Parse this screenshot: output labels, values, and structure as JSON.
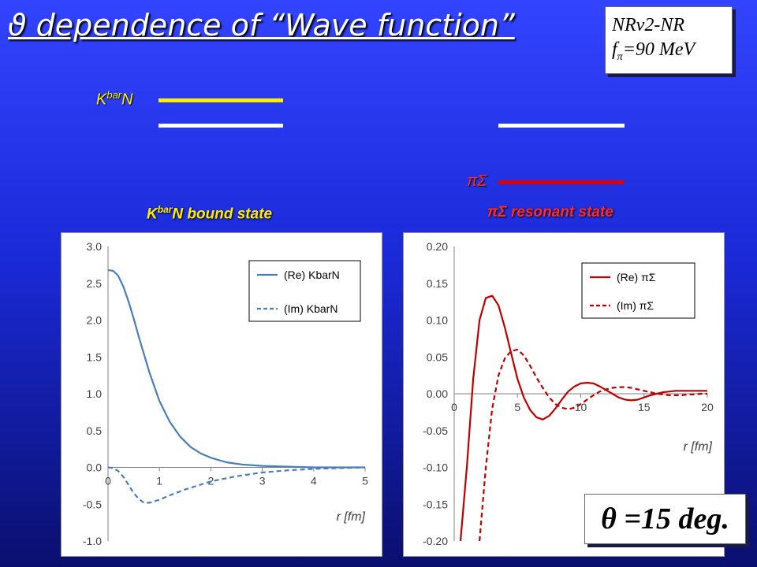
{
  "title": "ϑ dependence of “Wave function”",
  "info": {
    "line1": "NRv2-NR",
    "line2_f": "f",
    "line2_sub": "π",
    "line2_rest": "=90 MeV"
  },
  "levels": {
    "kbarn_label": "K",
    "kbarn_sup": "bar",
    "kbarn_tail": "N",
    "pisigma_label": "πΣ",
    "colors": {
      "yellow": "#ffee00",
      "white": "#ffffff",
      "red": "#e00000"
    }
  },
  "left_subtitle": {
    "k": "K",
    "sup": "bar",
    "rest": "N bound state"
  },
  "right_subtitle": "πΣ resonant state",
  "theta": "θ =15 deg.",
  "chart_data": [
    {
      "type": "line",
      "xlabel": "r [fm]",
      "xlim": [
        0,
        5
      ],
      "ylim": [
        -1.0,
        3.0
      ],
      "xticks": [
        0,
        1,
        2,
        3,
        4,
        5
      ],
      "yticks": [
        "3.0",
        "2.5",
        "2.0",
        "1.5",
        "1.0",
        "0.5",
        "0.0",
        "-0.5",
        "-1.0"
      ],
      "ytick_values": [
        3.0,
        2.5,
        2.0,
        1.5,
        1.0,
        0.5,
        0.0,
        -0.5,
        -1.0
      ],
      "legend_position": "top-right",
      "series": [
        {
          "name": "(Re) KbarN",
          "style": "solid",
          "color": "#4a7ebb",
          "x": [
            0,
            0.1,
            0.2,
            0.3,
            0.4,
            0.5,
            0.6,
            0.8,
            1.0,
            1.2,
            1.4,
            1.6,
            1.8,
            2.0,
            2.3,
            2.6,
            3.0,
            3.5,
            4.0,
            4.5,
            5.0
          ],
          "y": [
            2.68,
            2.67,
            2.6,
            2.45,
            2.25,
            2.02,
            1.77,
            1.3,
            0.9,
            0.62,
            0.42,
            0.28,
            0.19,
            0.13,
            0.07,
            0.04,
            0.02,
            0.01,
            0.0,
            0.0,
            0.0
          ]
        },
        {
          "name": "(Im) KbarN",
          "style": "dashed",
          "color": "#4a7ebb",
          "x": [
            0,
            0.1,
            0.2,
            0.3,
            0.4,
            0.5,
            0.6,
            0.7,
            0.8,
            1.0,
            1.2,
            1.5,
            2.0,
            2.5,
            3.0,
            3.5,
            4.0,
            4.5,
            5.0
          ],
          "y": [
            0.0,
            -0.01,
            -0.05,
            -0.13,
            -0.24,
            -0.35,
            -0.43,
            -0.48,
            -0.48,
            -0.44,
            -0.38,
            -0.3,
            -0.19,
            -0.12,
            -0.07,
            -0.04,
            -0.02,
            -0.01,
            0.0
          ]
        }
      ]
    },
    {
      "type": "line",
      "xlabel": "r [fm]",
      "xlim": [
        0,
        20
      ],
      "ylim": [
        -0.2,
        0.2
      ],
      "xticks": [
        0,
        5,
        10,
        15,
        20
      ],
      "yticks": [
        "0.20",
        "0.15",
        "0.10",
        "0.05",
        "0.00",
        "-0.05",
        "-0.10",
        "-0.15",
        "-0.20"
      ],
      "ytick_values": [
        0.2,
        0.15,
        0.1,
        0.05,
        0.0,
        -0.05,
        -0.1,
        -0.15,
        -0.2
      ],
      "legend_position": "top-right",
      "series": [
        {
          "name": "(Re) πΣ",
          "style": "solid",
          "color": "#c00000",
          "x": [
            0.5,
            1.0,
            1.5,
            2.0,
            2.5,
            3.0,
            3.5,
            4.0,
            4.5,
            5.0,
            5.5,
            6.0,
            6.5,
            7.0,
            7.5,
            8.0,
            8.5,
            9.0,
            9.5,
            10.0,
            10.5,
            11.0,
            11.5,
            12.0,
            12.5,
            13.0,
            13.5,
            14.0,
            14.5,
            15.0,
            15.5,
            16.0,
            16.5,
            17.0,
            17.5,
            18.0,
            18.5,
            19.0,
            19.5,
            20.0
          ],
          "y": [
            -0.2,
            -0.1,
            0.02,
            0.1,
            0.13,
            0.133,
            0.12,
            0.09,
            0.055,
            0.02,
            -0.005,
            -0.022,
            -0.032,
            -0.035,
            -0.03,
            -0.02,
            -0.008,
            0.003,
            0.01,
            0.014,
            0.015,
            0.014,
            0.01,
            0.005,
            0.0,
            -0.005,
            -0.008,
            -0.009,
            -0.008,
            -0.005,
            -0.002,
            0.0,
            0.002,
            0.003,
            0.004,
            0.004,
            0.004,
            0.004,
            0.004,
            0.004
          ]
        },
        {
          "name": "(Im) πΣ",
          "style": "dashed",
          "color": "#c00000",
          "x": [
            2.0,
            2.5,
            3.0,
            3.5,
            4.0,
            4.5,
            5.0,
            5.5,
            6.0,
            6.5,
            7.0,
            7.5,
            8.0,
            8.5,
            9.0,
            9.5,
            10.0,
            10.5,
            11.0,
            11.5,
            12.0,
            12.5,
            13.0,
            13.5,
            14.0,
            14.5,
            15.0,
            15.5,
            16.0,
            16.5,
            17.0,
            17.5,
            18.0,
            18.5,
            19.0,
            19.5,
            20.0
          ],
          "y": [
            -0.2,
            -0.1,
            -0.02,
            0.025,
            0.048,
            0.058,
            0.06,
            0.052,
            0.038,
            0.022,
            0.008,
            -0.005,
            -0.014,
            -0.019,
            -0.021,
            -0.019,
            -0.014,
            -0.008,
            -0.002,
            0.003,
            0.006,
            0.008,
            0.009,
            0.009,
            0.008,
            0.006,
            0.004,
            0.002,
            0.0,
            -0.001,
            -0.002,
            -0.002,
            -0.002,
            -0.001,
            -0.001,
            0.0,
            0.0
          ]
        }
      ]
    }
  ]
}
